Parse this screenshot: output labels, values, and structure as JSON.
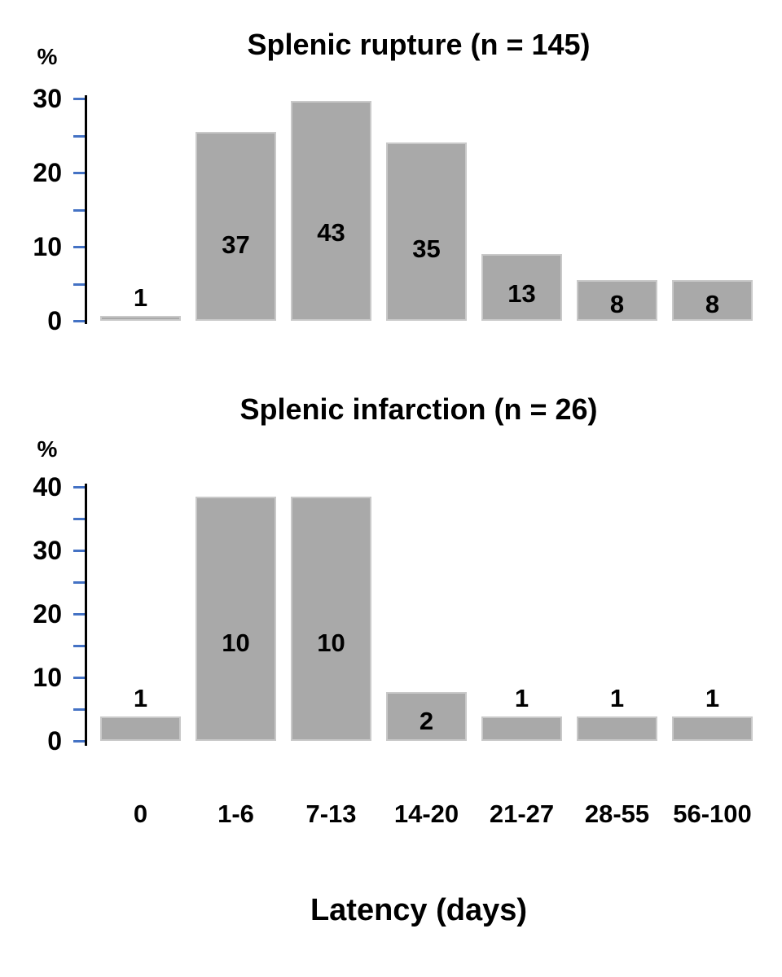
{
  "figure": {
    "background": "#ffffff",
    "bar_fill": "#a9a9a9",
    "bar_border": "#c9c9c9",
    "tick_color": "#4472c4",
    "axis_color": "#000000",
    "text_color": "#000000"
  },
  "xaxis": {
    "title": "Latency (days)",
    "categories": [
      "0",
      "1-6",
      "7-13",
      "14-20",
      "21-27",
      "28-55",
      "56-100"
    ]
  },
  "chart_data": [
    {
      "type": "bar",
      "title": "Splenic rupture (n = 145)",
      "n": 145,
      "ylabel": "%",
      "xlabel": "Latency (days)",
      "ylim": [
        0,
        30
      ],
      "ytick_minor_step": 5,
      "ytick_labels": [
        "30",
        "20",
        "10",
        "0"
      ],
      "grid": false,
      "legend": false,
      "categories": [
        "0",
        "1-6",
        "7-13",
        "14-20",
        "21-27",
        "28-55",
        "56-100"
      ],
      "counts": [
        1,
        37,
        43,
        35,
        13,
        8,
        8
      ],
      "values_percent": [
        0.7,
        25.5,
        29.7,
        24.1,
        9.0,
        5.5,
        5.5
      ],
      "bar_labels": [
        "1",
        "37",
        "43",
        "35",
        "13",
        "8",
        "8"
      ]
    },
    {
      "type": "bar",
      "title": "Splenic infarction (n = 26)",
      "n": 26,
      "ylabel": "%",
      "xlabel": "Latency (days)",
      "ylim": [
        0,
        40
      ],
      "ytick_minor_step": 5,
      "ytick_labels": [
        "40",
        "30",
        "20",
        "10",
        "0"
      ],
      "grid": false,
      "legend": false,
      "categories": [
        "0",
        "1-6",
        "7-13",
        "14-20",
        "21-27",
        "28-55",
        "56-100"
      ],
      "counts": [
        1,
        10,
        10,
        2,
        1,
        1,
        1
      ],
      "values_percent": [
        3.8,
        38.5,
        38.5,
        7.7,
        3.8,
        3.8,
        3.8
      ],
      "bar_labels": [
        "1",
        "10",
        "10",
        "2",
        "1",
        "1",
        "1"
      ]
    }
  ]
}
